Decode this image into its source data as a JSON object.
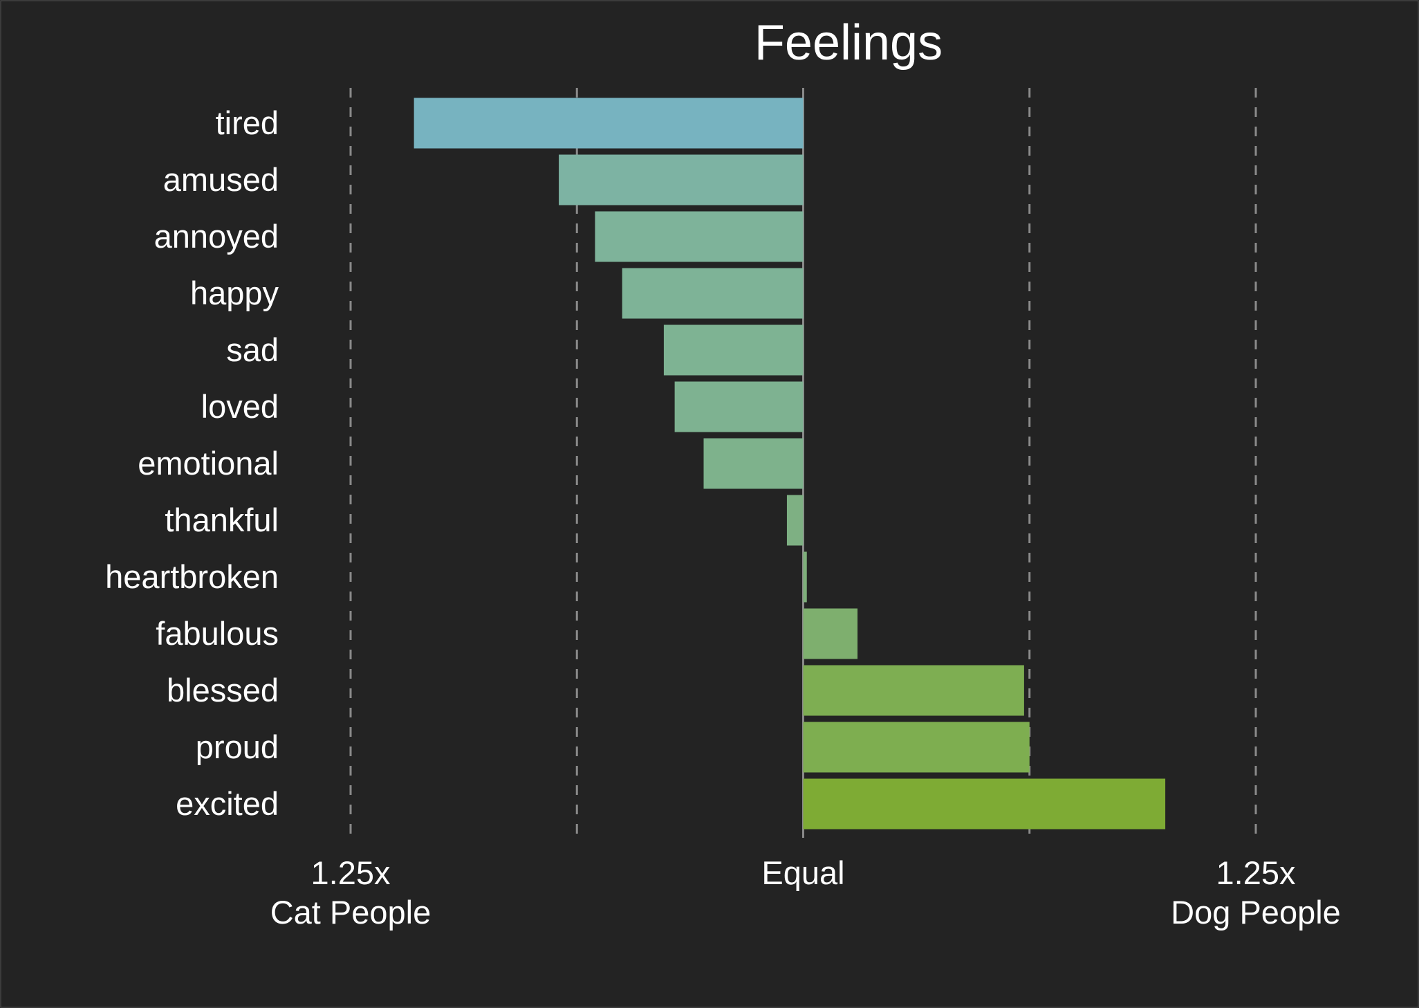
{
  "chart_data": {
    "type": "bar",
    "orientation": "horizontal",
    "title": "Feelings",
    "categories": [
      "tired",
      "amused",
      "annoyed",
      "happy",
      "sad",
      "loved",
      "emotional",
      "thankful",
      "heartbroken",
      "fabulous",
      "blessed",
      "proud",
      "excited"
    ],
    "values": [
      -0.215,
      -0.135,
      -0.115,
      -0.1,
      -0.077,
      -0.071,
      -0.055,
      -0.009,
      0.002,
      0.03,
      0.122,
      0.125,
      0.2
    ],
    "colors": [
      "#77b3c0",
      "#7db3a3",
      "#7eb39a",
      "#7eb397",
      "#7eb393",
      "#7eb291",
      "#7eb28c",
      "#7eb083",
      "#7eaf7a",
      "#7eaf6e",
      "#7eae52",
      "#7eae50",
      "#7eab34"
    ],
    "xlim": [
      -0.25,
      0.25
    ],
    "gridlines": [
      -0.25,
      -0.125,
      0.125,
      0.25
    ],
    "x_ticks": [
      {
        "value": -0.25,
        "line1": "1.25x",
        "line2": "Cat People"
      },
      {
        "value": 0,
        "line1": "Equal",
        "line2": ""
      },
      {
        "value": 0.25,
        "line1": "1.25x",
        "line2": "Dog People"
      }
    ],
    "grid": true,
    "background": "#232323"
  }
}
